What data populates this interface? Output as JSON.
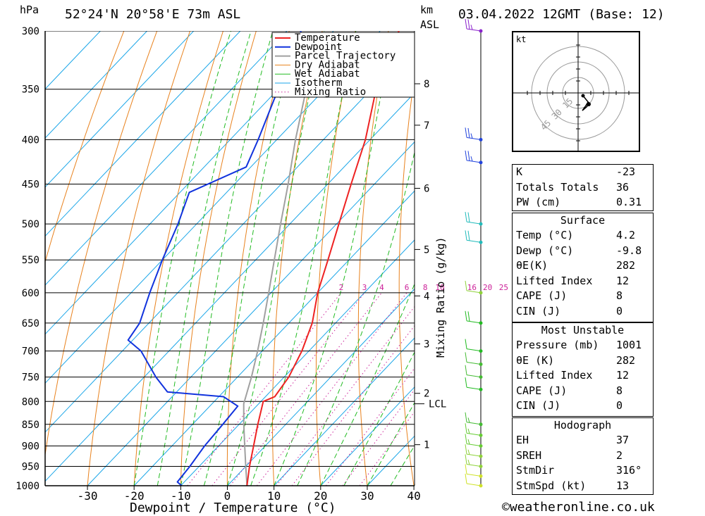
{
  "header": {
    "pressure_unit": "hPa",
    "height_unit": "km",
    "height_ref": "ASL",
    "station": "52°24'N 20°58'E 73m ASL",
    "datetime": "03.04.2022 12GMT (Base: 12)"
  },
  "credit": "©weatheronline.co.uk",
  "hodograph": {
    "unit": "kt",
    "ring_labels": [
      "15",
      "30",
      "45"
    ],
    "colors": {
      "axes": "#000000",
      "rings": "#9a9a9a",
      "trace": "#000000"
    }
  },
  "indices": {
    "rows": [
      {
        "label": "K",
        "value": "-23"
      },
      {
        "label": "Totals Totals",
        "value": "36"
      },
      {
        "label": "PW (cm)",
        "value": "0.31"
      }
    ]
  },
  "surface": {
    "title": "Surface",
    "rows": [
      {
        "label": "Temp (°C)",
        "value": "4.2"
      },
      {
        "label": "Dewp (°C)",
        "value": "-9.8"
      },
      {
        "label": "θE(K)",
        "value": "282"
      },
      {
        "label": "Lifted Index",
        "value": "12"
      },
      {
        "label": "CAPE (J)",
        "value": "8"
      },
      {
        "label": "CIN (J)",
        "value": "0"
      }
    ]
  },
  "most_unstable": {
    "title": "Most Unstable",
    "rows": [
      {
        "label": "Pressure (mb)",
        "value": "1001"
      },
      {
        "label": "θE (K)",
        "value": "282"
      },
      {
        "label": "Lifted Index",
        "value": "12"
      },
      {
        "label": "CAPE (J)",
        "value": "8"
      },
      {
        "label": "CIN (J)",
        "value": "0"
      }
    ]
  },
  "hodograph_box": {
    "title": "Hodograph",
    "rows": [
      {
        "label": "EH",
        "value": "37"
      },
      {
        "label": "SREH",
        "value": "2"
      },
      {
        "label": "StmDir",
        "value": "316°"
      },
      {
        "label": "StmSpd (kt)",
        "value": "13"
      }
    ]
  },
  "chart_data": {
    "type": "skew-t",
    "xlabel": "Dewpoint / Temperature (°C)",
    "ylabel": "hPa",
    "right_label": "Mixing Ratio (g/kg)",
    "xlim": [
      -40,
      40
    ],
    "ylim": [
      1000,
      300
    ],
    "x_ticks": [
      -30,
      -20,
      -10,
      0,
      10,
      20,
      30,
      40
    ],
    "pressure_levels": [
      300,
      350,
      400,
      450,
      500,
      550,
      600,
      650,
      700,
      750,
      800,
      850,
      900,
      950,
      1000
    ],
    "height_ticks": [
      {
        "label": "8",
        "p": 345
      },
      {
        "label": "7",
        "p": 385
      },
      {
        "label": "6",
        "p": 455
      },
      {
        "label": "5",
        "p": 535
      },
      {
        "label": "4",
        "p": 605
      },
      {
        "label": "3",
        "p": 687
      },
      {
        "label": "2",
        "p": 783
      },
      {
        "label": "1",
        "p": 897
      }
    ],
    "lcl": {
      "label": "LCL",
      "p": 805
    },
    "mixing_ratio_labels": [
      "2",
      "3",
      "4",
      "6",
      "8",
      "10",
      "16",
      "20",
      "25"
    ],
    "mixing_ratio_values": [
      2,
      3,
      4,
      6,
      8,
      10,
      16,
      20,
      25
    ],
    "legend": [
      "Temperature",
      "Dewpoint",
      "Parcel Trajectory",
      "Dry Adiabat",
      "Wet Adiabat",
      "Isotherm",
      "Mixing Ratio"
    ],
    "legend_position": "top-right",
    "colors": {
      "temperature": "#ee2222",
      "dewpoint": "#1133dd",
      "parcel": "#a0a0a0",
      "dry_adiabat": "#e8821e",
      "wet_adiabat": "#22bb22",
      "isotherm": "#1aa6e8",
      "mixing_ratio": "#cc2299"
    },
    "temperature": [
      {
        "p": 1000,
        "t": 4.2
      },
      {
        "p": 950,
        "t": 0.8
      },
      {
        "p": 900,
        "t": -2.5
      },
      {
        "p": 850,
        "t": -6.0
      },
      {
        "p": 800,
        "t": -9.5
      },
      {
        "p": 790,
        "t": -8.0
      },
      {
        "p": 750,
        "t": -9.0
      },
      {
        "p": 700,
        "t": -11.5
      },
      {
        "p": 650,
        "t": -15.0
      },
      {
        "p": 600,
        "t": -20.0
      },
      {
        "p": 550,
        "t": -24.5
      },
      {
        "p": 500,
        "t": -29.5
      },
      {
        "p": 450,
        "t": -35.0
      },
      {
        "p": 400,
        "t": -41.0
      },
      {
        "p": 350,
        "t": -49.0
      },
      {
        "p": 300,
        "t": -56.0
      }
    ],
    "dewpoint": [
      {
        "p": 1000,
        "t": -9.8
      },
      {
        "p": 990,
        "t": -11.5
      },
      {
        "p": 950,
        "t": -12.0
      },
      {
        "p": 900,
        "t": -13.0
      },
      {
        "p": 850,
        "t": -13.5
      },
      {
        "p": 810,
        "t": -14.0
      },
      {
        "p": 790,
        "t": -19.0
      },
      {
        "p": 780,
        "t": -32.0
      },
      {
        "p": 750,
        "t": -37.5
      },
      {
        "p": 700,
        "t": -46.0
      },
      {
        "p": 680,
        "t": -51.0
      },
      {
        "p": 650,
        "t": -52.0
      },
      {
        "p": 600,
        "t": -56.0
      },
      {
        "p": 550,
        "t": -60.0
      },
      {
        "p": 500,
        "t": -64.0
      },
      {
        "p": 460,
        "t": -68.0
      },
      {
        "p": 430,
        "t": -61.0
      },
      {
        "p": 400,
        "t": -64.0
      },
      {
        "p": 350,
        "t": -70.0
      },
      {
        "p": 320,
        "t": -73.0
      },
      {
        "p": 300,
        "t": -77.0
      }
    ],
    "parcel": [
      {
        "p": 1000,
        "t": 4.2
      },
      {
        "p": 950,
        "t": 0.0
      },
      {
        "p": 900,
        "t": -4.4
      },
      {
        "p": 850,
        "t": -9.0
      },
      {
        "p": 805,
        "t": -13.2
      },
      {
        "p": 750,
        "t": -17.0
      },
      {
        "p": 700,
        "t": -21.0
      },
      {
        "p": 650,
        "t": -25.5
      },
      {
        "p": 600,
        "t": -30.5
      },
      {
        "p": 550,
        "t": -36.0
      },
      {
        "p": 500,
        "t": -42.0
      },
      {
        "p": 450,
        "t": -48.5
      },
      {
        "p": 400,
        "t": -56.0
      },
      {
        "p": 350,
        "t": -64.0
      },
      {
        "p": 310,
        "t": -71.0
      }
    ],
    "winds": [
      {
        "p": 1000,
        "speed_kt": 10,
        "color": "#cfe22a"
      },
      {
        "p": 975,
        "speed_kt": 10,
        "color": "#cfe22a"
      },
      {
        "p": 950,
        "speed_kt": 15,
        "color": "#8fd23a"
      },
      {
        "p": 925,
        "speed_kt": 15,
        "color": "#8fd23a"
      },
      {
        "p": 900,
        "speed_kt": 15,
        "color": "#66cc33"
      },
      {
        "p": 875,
        "speed_kt": 15,
        "color": "#66cc33"
      },
      {
        "p": 850,
        "speed_kt": 15,
        "color": "#44bb33"
      },
      {
        "p": 775,
        "speed_kt": 10,
        "color": "#22bb22"
      },
      {
        "p": 750,
        "speed_kt": 10,
        "color": "#44bb33"
      },
      {
        "p": 725,
        "speed_kt": 10,
        "color": "#44bb33"
      },
      {
        "p": 700,
        "speed_kt": 10,
        "color": "#22bb22"
      },
      {
        "p": 650,
        "speed_kt": 20,
        "color": "#22bb22"
      },
      {
        "p": 600,
        "speed_kt": 10,
        "color": "#8fd23a"
      },
      {
        "p": 525,
        "speed_kt": 20,
        "color": "#22bbbb"
      },
      {
        "p": 500,
        "speed_kt": 20,
        "color": "#22bbbb"
      },
      {
        "p": 425,
        "speed_kt": 25,
        "color": "#2244dd"
      },
      {
        "p": 400,
        "speed_kt": 25,
        "color": "#2244dd"
      },
      {
        "p": 300,
        "speed_kt": 25,
        "color": "#8a22cc"
      }
    ]
  }
}
